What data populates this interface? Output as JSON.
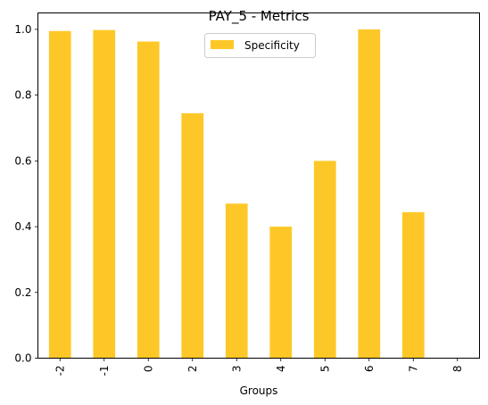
{
  "chart_data": {
    "type": "bar",
    "title": "PAY_5 - Metrics",
    "xlabel": "Groups",
    "ylabel": "",
    "categories": [
      "-2",
      "-1",
      "0",
      "2",
      "3",
      "4",
      "5",
      "6",
      "7",
      "8"
    ],
    "series": [
      {
        "name": "Specificity",
        "color": "#fdc827",
        "values": [
          0.995,
          0.998,
          0.963,
          0.745,
          0.47,
          0.4,
          0.6,
          1.0,
          0.444,
          0.0
        ]
      }
    ],
    "ylim": [
      0,
      1.05
    ],
    "yticks": [
      0.0,
      0.2,
      0.4,
      0.6,
      0.8,
      1.0
    ],
    "ytick_labels": [
      "0.0",
      "0.2",
      "0.4",
      "0.6",
      "0.8",
      "1.0"
    ],
    "grid": false,
    "legend_position": "top-center"
  }
}
